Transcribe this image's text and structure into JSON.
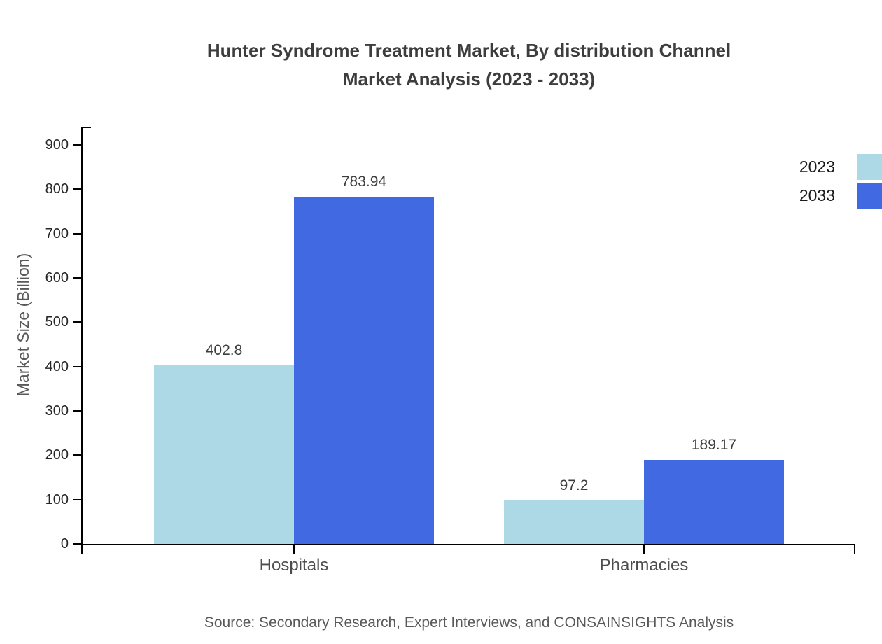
{
  "title": {
    "line1": "Hunter Syndrome Treatment Market, By distribution Channel",
    "line2": "Market Analysis (2023 - 2033)"
  },
  "chart_data": {
    "type": "bar",
    "categories": [
      "Hospitals",
      "Pharmacies"
    ],
    "series": [
      {
        "name": "2023",
        "color": "#ADD8E6",
        "values": [
          402.8,
          97.2
        ],
        "value_labels": [
          "402.8",
          "97.2"
        ]
      },
      {
        "name": "2033",
        "color": "#4169E1",
        "values": [
          783.94,
          189.17
        ],
        "value_labels": [
          "783.94",
          "189.17"
        ]
      }
    ],
    "title": "Hunter Syndrome Treatment Market, By distribution Channel Market Analysis (2023 - 2033)",
    "xlabel": "",
    "ylabel": "Market Size (Billion)",
    "ylim": [
      0,
      900
    ],
    "yticks": [
      0,
      100,
      200,
      300,
      400,
      500,
      600,
      700,
      800,
      900
    ],
    "grid": false,
    "legend_position": "top-right"
  },
  "legend": {
    "items": [
      {
        "label": "2023",
        "color": "#ADD8E6"
      },
      {
        "label": "2033",
        "color": "#4169E1"
      }
    ]
  },
  "source": "Source: Secondary Research, Expert Interviews, and CONSAINSIGHTS Analysis",
  "colors": {
    "series_2023": "#ADD8E6",
    "series_2033": "#4169E1",
    "axis": "#000000",
    "title_text": "#3d3d3d",
    "muted_text": "#595959",
    "background": "#ffffff"
  }
}
